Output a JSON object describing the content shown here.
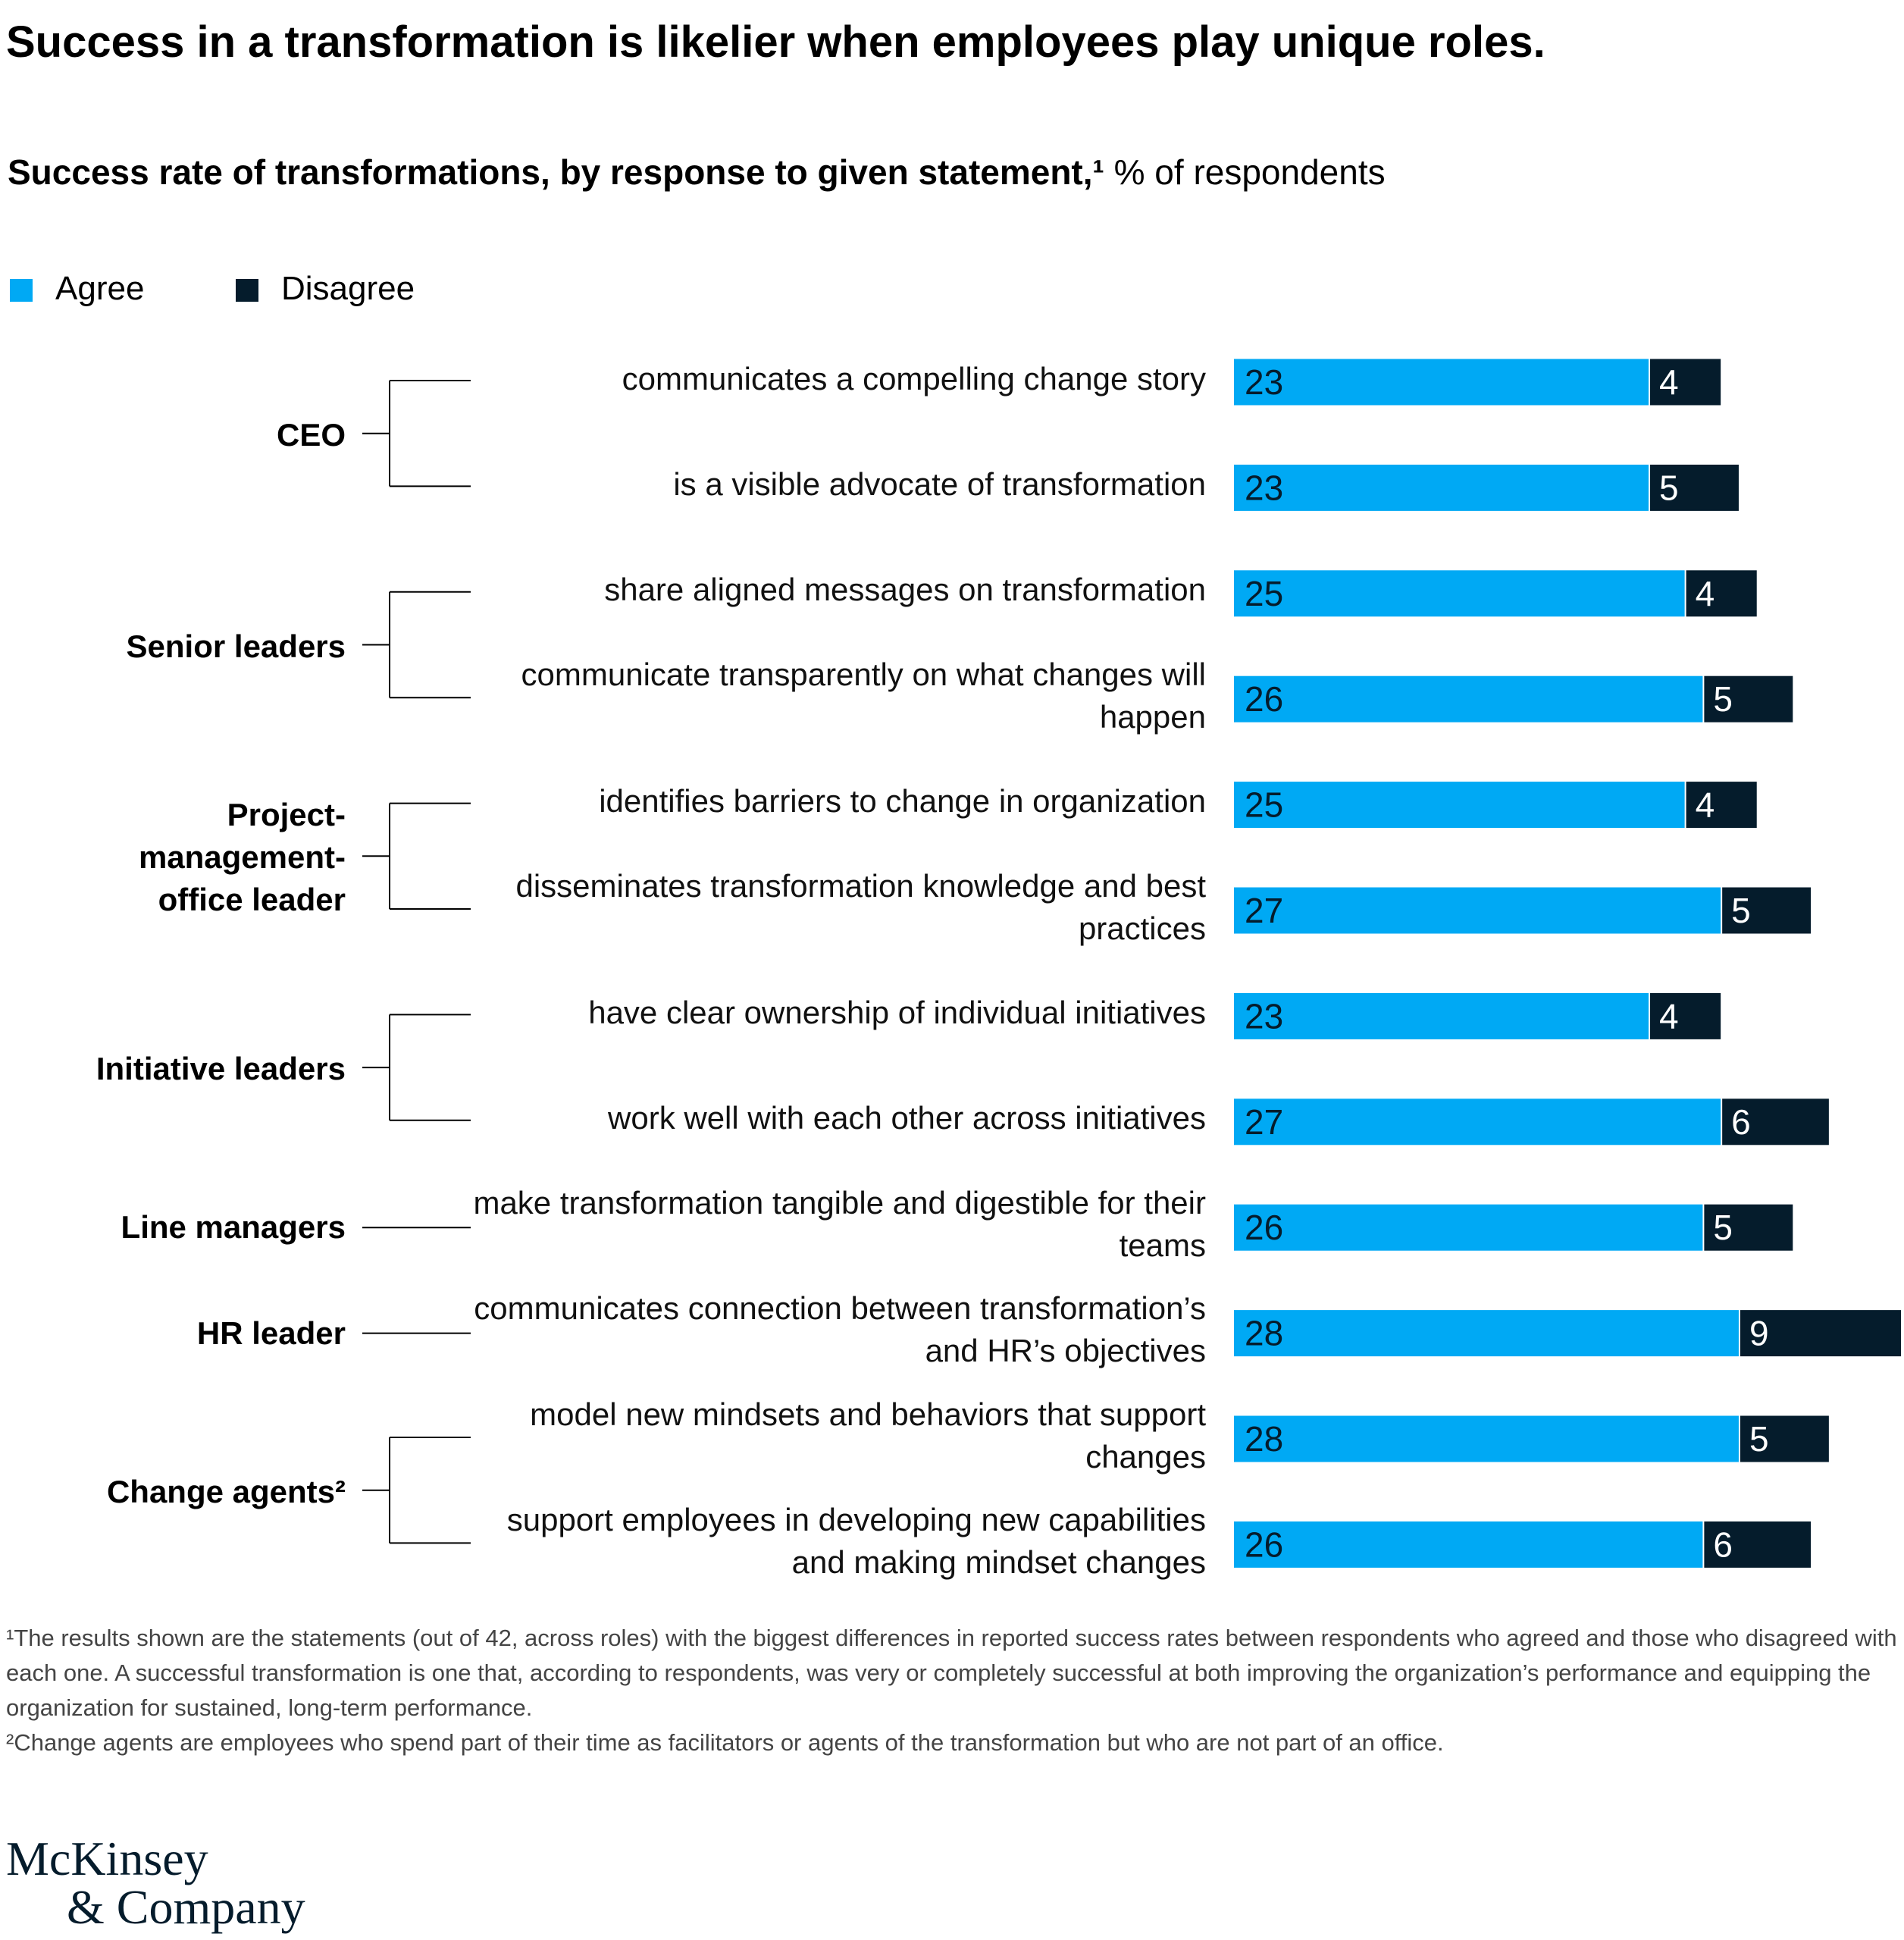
{
  "chart_data": {
    "type": "bar",
    "orientation": "horizontal",
    "stacked": true,
    "title": "Success in a transformation is likelier when employees play unique roles.",
    "subtitle": "Success rate of transformations, by response to given statement,¹",
    "unit": "% of respondents",
    "groups": [
      {
        "name": "CEO",
        "categories": [
          "communicates a compelling change story",
          "is a visible advocate of transformation"
        ]
      },
      {
        "name": "Senior leaders",
        "categories": [
          "share aligned messages on transformation",
          "communicate transparently on what changes will happen"
        ]
      },
      {
        "name": "Project-management-office leader",
        "categories": [
          "identifies barriers to change in organization",
          "disseminates transformation knowledge and best practices"
        ]
      },
      {
        "name": "Initiative leaders",
        "categories": [
          "have clear ownership of individual initiatives",
          "work well with each other across initiatives"
        ]
      },
      {
        "name": "Line managers",
        "categories": [
          "make transformation tangible and digestible for their teams"
        ]
      },
      {
        "name": "HR leader",
        "categories": [
          "communicates connection between transformation’s and HR’s objectives"
        ]
      },
      {
        "name": "Change agents²",
        "categories": [
          "model new mindsets and behaviors that support changes",
          "support employees in developing new capabilities and making mindset changes"
        ]
      }
    ],
    "series": [
      {
        "name": "Agree",
        "color": "#00a9f4",
        "values": [
          23,
          23,
          25,
          26,
          25,
          27,
          23,
          27,
          26,
          28,
          28,
          26
        ]
      },
      {
        "name": "Disagree",
        "color": "#051c2c",
        "values": [
          4,
          5,
          4,
          5,
          4,
          5,
          4,
          6,
          5,
          9,
          5,
          6
        ]
      }
    ],
    "xlim": [
      0,
      37
    ],
    "footnotes": [
      "¹The results shown are the statements (out of 42, across roles) with the biggest differences in reported success rates between respondents who agreed and those who disagreed with each one. A successful transformation is one that, according to respondents, was very or completely successful at both improving the organization’s performance and equipping the organization for sustained, long-term performance.",
      "²Change agents are employees who spend part of their time as facilitators or agents of the transformation but who are not part of an office."
    ]
  },
  "logo": [
    "McKinsey",
    "& Company"
  ]
}
